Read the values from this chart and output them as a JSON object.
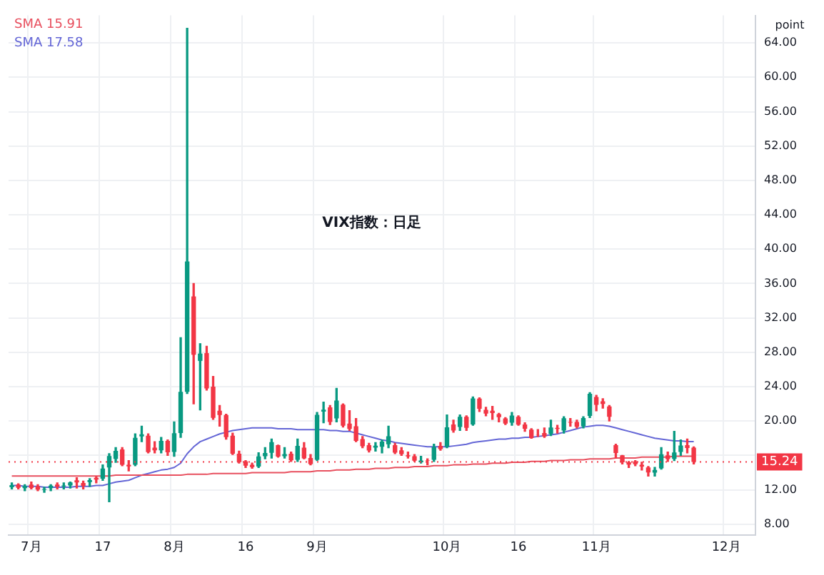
{
  "chart_data": {
    "type": "candlestick",
    "title": "VIX指数：日足",
    "ylabel": "point",
    "categories": [
      null,
      null,
      null,
      "7月",
      null,
      null,
      null,
      null,
      null,
      null,
      null,
      null,
      null,
      null,
      "17",
      null,
      null,
      null,
      null,
      null,
      null,
      null,
      null,
      null,
      null,
      "8月",
      null,
      null,
      null,
      null,
      null,
      null,
      null,
      null,
      null,
      null,
      "16",
      null,
      null,
      null,
      null,
      null,
      null,
      null,
      null,
      null,
      null,
      "9月",
      null,
      null,
      null,
      null,
      null,
      null,
      null,
      null,
      null,
      null,
      null,
      null,
      null,
      null,
      null,
      null,
      null,
      null,
      null,
      "10月",
      null,
      null,
      null,
      null,
      null,
      null,
      null,
      null,
      null,
      null,
      "16",
      null,
      null,
      null,
      null,
      null,
      null,
      null,
      null,
      null,
      null,
      null,
      "11月",
      null,
      null,
      null,
      null,
      null,
      null,
      null,
      null,
      null,
      null,
      null,
      null,
      null,
      null,
      null,
      null,
      null,
      null,
      null,
      "12月",
      null,
      null,
      null,
      null
    ],
    "ohlc": [
      [
        12.3,
        12.8,
        12.1,
        12.55
      ],
      [
        12.6,
        12.7,
        12.1,
        12.24
      ],
      [
        12.2,
        12.6,
        11.9,
        12.44
      ],
      [
        12.6,
        12.9,
        12.1,
        12.22
      ],
      [
        12.4,
        12.6,
        11.9,
        12.03
      ],
      [
        12.0,
        12.3,
        11.7,
        12.09
      ],
      [
        12.2,
        12.6,
        11.9,
        12.48
      ],
      [
        12.6,
        12.8,
        12.1,
        12.37
      ],
      [
        12.4,
        12.8,
        12.1,
        12.51
      ],
      [
        12.5,
        12.9,
        12.2,
        12.85
      ],
      [
        13.1,
        13.4,
        12.2,
        12.85
      ],
      [
        12.8,
        13.0,
        12.1,
        12.46
      ],
      [
        12.9,
        13.3,
        12.4,
        13.12
      ],
      [
        13.4,
        13.5,
        12.8,
        13.19
      ],
      [
        13.3,
        14.9,
        13.1,
        14.48
      ],
      [
        14.6,
        16.2,
        10.6,
        15.93
      ],
      [
        15.6,
        16.9,
        15.2,
        16.52
      ],
      [
        16.7,
        16.9,
        14.8,
        14.91
      ],
      [
        14.9,
        15.4,
        14.2,
        14.72
      ],
      [
        14.9,
        18.5,
        14.8,
        18.04
      ],
      [
        18.2,
        19.4,
        17.6,
        18.46
      ],
      [
        18.3,
        18.5,
        16.3,
        16.39
      ],
      [
        16.9,
        17.6,
        16.3,
        16.6
      ],
      [
        16.6,
        18.1,
        16.3,
        17.69
      ],
      [
        17.7,
        17.8,
        16.0,
        16.36
      ],
      [
        16.4,
        19.9,
        15.9,
        18.59
      ],
      [
        18.6,
        29.7,
        18.1,
        23.39
      ],
      [
        23.4,
        65.7,
        23.2,
        38.57
      ],
      [
        34.5,
        36.0,
        22.0,
        27.71
      ],
      [
        27.0,
        29.0,
        21.3,
        27.85
      ],
      [
        27.9,
        28.7,
        23.6,
        23.79
      ],
      [
        24.0,
        25.2,
        20.2,
        20.37
      ],
      [
        21.2,
        21.8,
        19.4,
        20.71
      ],
      [
        20.7,
        20.8,
        17.9,
        18.12
      ],
      [
        18.3,
        18.6,
        16.1,
        16.19
      ],
      [
        16.2,
        16.5,
        15.1,
        15.23
      ],
      [
        15.3,
        15.4,
        14.6,
        14.8
      ],
      [
        14.9,
        15.1,
        14.5,
        14.65
      ],
      [
        14.7,
        16.3,
        14.6,
        15.88
      ],
      [
        15.9,
        16.9,
        15.6,
        16.27
      ],
      [
        16.3,
        17.9,
        15.7,
        17.55
      ],
      [
        17.2,
        17.2,
        15.8,
        15.86
      ],
      [
        15.9,
        16.9,
        15.7,
        16.15
      ],
      [
        16.2,
        16.4,
        15.3,
        15.43
      ],
      [
        15.5,
        17.9,
        15.3,
        17.11
      ],
      [
        16.9,
        17.5,
        15.6,
        15.65
      ],
      [
        15.7,
        16.1,
        14.9,
        15.0
      ],
      [
        15.5,
        21.0,
        15.4,
        20.72
      ],
      [
        21.1,
        22.2,
        19.8,
        21.32
      ],
      [
        21.6,
        21.8,
        19.6,
        19.9
      ],
      [
        20.3,
        23.8,
        19.9,
        22.38
      ],
      [
        21.9,
        22.0,
        19.3,
        19.45
      ],
      [
        19.7,
        21.2,
        18.9,
        19.08
      ],
      [
        19.4,
        20.3,
        17.6,
        17.69
      ],
      [
        17.9,
        18.2,
        16.9,
        17.07
      ],
      [
        17.2,
        17.4,
        16.4,
        16.56
      ],
      [
        16.9,
        17.5,
        16.5,
        17.14
      ],
      [
        17.0,
        17.8,
        16.3,
        17.61
      ],
      [
        17.3,
        19.4,
        16.9,
        18.23
      ],
      [
        17.2,
        17.4,
        16.2,
        16.33
      ],
      [
        16.6,
        16.9,
        16.0,
        16.15
      ],
      [
        16.0,
        16.4,
        15.7,
        15.89
      ],
      [
        15.9,
        16.1,
        15.3,
        15.39
      ],
      [
        15.2,
        15.9,
        15.1,
        15.41
      ],
      [
        15.4,
        15.6,
        14.9,
        15.37
      ],
      [
        15.5,
        17.3,
        15.3,
        16.96
      ],
      [
        17.1,
        17.5,
        16.6,
        16.73
      ],
      [
        17.0,
        20.7,
        16.9,
        19.26
      ],
      [
        19.6,
        20.1,
        18.7,
        18.9
      ],
      [
        19.3,
        20.7,
        18.9,
        20.49
      ],
      [
        20.5,
        20.6,
        18.9,
        19.21
      ],
      [
        19.6,
        22.8,
        19.5,
        22.64
      ],
      [
        22.6,
        22.7,
        21.1,
        21.42
      ],
      [
        21.3,
        21.6,
        20.6,
        20.86
      ],
      [
        21.2,
        21.7,
        20.2,
        20.93
      ],
      [
        20.8,
        20.9,
        19.9,
        20.46
      ],
      [
        20.3,
        20.4,
        19.6,
        19.7
      ],
      [
        19.8,
        21.0,
        19.5,
        20.64
      ],
      [
        20.5,
        20.6,
        19.5,
        19.58
      ],
      [
        19.6,
        19.8,
        18.8,
        19.11
      ],
      [
        19.0,
        19.1,
        18.0,
        18.03
      ],
      [
        18.4,
        19.0,
        18.2,
        18.37
      ],
      [
        18.6,
        19.2,
        18.1,
        18.2
      ],
      [
        18.5,
        20.1,
        18.3,
        19.24
      ],
      [
        19.2,
        19.5,
        18.6,
        19.08
      ],
      [
        18.9,
        20.5,
        18.6,
        20.33
      ],
      [
        19.9,
        20.3,
        19.4,
        19.8
      ],
      [
        19.9,
        20.1,
        19.2,
        19.34
      ],
      [
        19.4,
        20.5,
        19.2,
        20.35
      ],
      [
        20.6,
        23.3,
        20.4,
        23.16
      ],
      [
        22.8,
        23.0,
        21.2,
        21.88
      ],
      [
        22.3,
        22.6,
        21.5,
        21.98
      ],
      [
        21.7,
        21.8,
        20.0,
        20.49
      ],
      [
        17.2,
        17.3,
        15.7,
        16.27
      ],
      [
        16.0,
        16.0,
        15.0,
        15.2
      ],
      [
        15.2,
        15.3,
        14.6,
        14.94
      ],
      [
        15.3,
        15.4,
        14.8,
        14.97
      ],
      [
        14.9,
        15.2,
        14.3,
        14.71
      ],
      [
        14.6,
        14.7,
        13.6,
        14.02
      ],
      [
        14.0,
        14.6,
        13.6,
        14.31
      ],
      [
        14.5,
        16.9,
        14.4,
        16.14
      ],
      [
        16.0,
        16.4,
        15.3,
        15.58
      ],
      [
        15.6,
        18.8,
        15.4,
        16.35
      ],
      [
        16.4,
        17.8,
        16.0,
        17.16
      ],
      [
        17.2,
        17.9,
        16.3,
        16.87
      ],
      [
        16.9,
        17.0,
        15.0,
        15.24
      ],
      null,
      null,
      null,
      null,
      null,
      null,
      null,
      null,
      null
    ],
    "colors": [
      "#089981",
      "#f23645",
      "#089981",
      "#f23645",
      "#f23645",
      "#089981",
      "#089981",
      "#f23645",
      "#089981",
      "#089981",
      "#f23645",
      "#f23645",
      "#089981",
      "#f23645",
      "#089981",
      "#089981",
      "#089981",
      "#f23645",
      "#f23645",
      "#089981",
      "#089981",
      "#f23645",
      "#f23645",
      "#089981",
      "#f23645",
      "#089981",
      "#089981",
      "#089981",
      "#f23645",
      "#089981",
      "#f23645",
      "#f23645",
      "#f23645",
      "#f23645",
      "#f23645",
      "#f23645",
      "#f23645",
      "#f23645",
      "#089981",
      "#089981",
      "#089981",
      "#f23645",
      "#089981",
      "#f23645",
      "#089981",
      "#f23645",
      "#f23645",
      "#089981",
      "#089981",
      "#f23645",
      "#089981",
      "#f23645",
      "#f23645",
      "#f23645",
      "#f23645",
      "#f23645",
      "#089981",
      "#089981",
      "#089981",
      "#f23645",
      "#f23645",
      "#f23645",
      "#f23645",
      "#089981",
      "#f23645",
      "#089981",
      "#f23645",
      "#089981",
      "#f23645",
      "#089981",
      "#f23645",
      "#089981",
      "#f23645",
      "#f23645",
      "#f23645",
      "#f23645",
      "#f23645",
      "#089981",
      "#f23645",
      "#f23645",
      "#f23645",
      "#f23645",
      "#f23645",
      "#089981",
      "#f23645",
      "#089981",
      "#f23645",
      "#f23645",
      "#089981",
      "#089981",
      "#f23645",
      "#f23645",
      "#f23645",
      "#f23645",
      "#f23645",
      "#f23645",
      "#f23645",
      "#f23645",
      "#f23645",
      "#089981",
      "#089981",
      "#f23645",
      "#089981",
      "#089981",
      "#f23645",
      "#f23645",
      null,
      null,
      null,
      null,
      null,
      null,
      null,
      null,
      null
    ],
    "series": [
      {
        "type": "line",
        "name": "SMA 15.91",
        "color": "#e8505f",
        "values": [
          13.6,
          13.6,
          13.6,
          13.6,
          13.6,
          13.6,
          13.6,
          13.6,
          13.6,
          13.6,
          13.6,
          13.6,
          13.6,
          13.6,
          13.6,
          13.6,
          13.7,
          13.7,
          13.7,
          13.7,
          13.7,
          13.7,
          13.7,
          13.7,
          13.7,
          13.7,
          13.7,
          13.8,
          13.8,
          13.8,
          13.8,
          13.9,
          13.9,
          13.9,
          13.9,
          13.9,
          13.9,
          14.0,
          14.0,
          14.0,
          14.0,
          14.0,
          14.0,
          14.1,
          14.1,
          14.1,
          14.1,
          14.2,
          14.2,
          14.2,
          14.3,
          14.3,
          14.3,
          14.4,
          14.4,
          14.4,
          14.5,
          14.5,
          14.5,
          14.6,
          14.6,
          14.6,
          14.7,
          14.7,
          14.7,
          14.8,
          14.8,
          14.8,
          14.9,
          14.9,
          14.9,
          15.0,
          15.0,
          15.0,
          15.1,
          15.1,
          15.1,
          15.2,
          15.2,
          15.2,
          15.3,
          15.3,
          15.3,
          15.4,
          15.4,
          15.4,
          15.5,
          15.5,
          15.5,
          15.6,
          15.6,
          15.6,
          15.6,
          15.7,
          15.7,
          15.7,
          15.7,
          15.8,
          15.8,
          15.8,
          15.8,
          15.8,
          15.9,
          15.9,
          15.9,
          15.9,
          null,
          null,
          null,
          null,
          null,
          null,
          null,
          null,
          null
        ]
      },
      {
        "type": "line",
        "name": "SMA 17.58",
        "color": "#6466d6",
        "values": [
          12.5,
          12.5,
          12.4,
          12.4,
          12.4,
          12.3,
          12.3,
          12.3,
          12.3,
          12.3,
          12.4,
          12.4,
          12.4,
          12.5,
          12.5,
          12.7,
          12.9,
          13.0,
          13.1,
          13.4,
          13.7,
          13.9,
          14.1,
          14.3,
          14.4,
          14.6,
          15.1,
          16.2,
          17.0,
          17.6,
          17.9,
          18.2,
          18.5,
          18.7,
          18.9,
          19.0,
          19.1,
          19.2,
          19.2,
          19.2,
          19.2,
          19.1,
          19.1,
          19.1,
          19.0,
          19.0,
          19.0,
          19.0,
          19.0,
          18.9,
          18.9,
          18.8,
          18.8,
          18.6,
          18.4,
          18.2,
          18.0,
          17.8,
          17.7,
          17.5,
          17.4,
          17.3,
          17.2,
          17.1,
          17.0,
          17.0,
          17.0,
          17.0,
          17.1,
          17.2,
          17.3,
          17.5,
          17.6,
          17.7,
          17.8,
          17.9,
          17.9,
          18.0,
          18.0,
          18.1,
          18.1,
          18.2,
          18.3,
          18.4,
          18.5,
          18.7,
          18.9,
          19.1,
          19.3,
          19.4,
          19.5,
          19.5,
          19.4,
          19.2,
          19.0,
          18.8,
          18.6,
          18.4,
          18.2,
          18.0,
          17.9,
          17.8,
          17.7,
          17.7,
          17.6,
          17.6,
          null,
          null,
          null,
          null,
          null,
          null,
          null,
          null,
          null
        ]
      }
    ],
    "ylim": [
      6.7,
      67.2
    ],
    "yticks": [
      {
        "value": 8,
        "label": "8.00"
      },
      {
        "value": 12,
        "label": "12.00"
      },
      {
        "value": 16,
        "label": null
      },
      {
        "value": 20,
        "label": "20.00"
      },
      {
        "value": 24,
        "label": "24.00"
      },
      {
        "value": 28,
        "label": "28.00"
      },
      {
        "value": 32,
        "label": "32.00"
      },
      {
        "value": 36,
        "label": "36.00"
      },
      {
        "value": 40,
        "label": "40.00"
      },
      {
        "value": 44,
        "label": "44.00"
      },
      {
        "value": 48,
        "label": "48.00"
      },
      {
        "value": 52,
        "label": "52.00"
      },
      {
        "value": 56,
        "label": "56.00"
      },
      {
        "value": 60,
        "label": "60.00"
      },
      {
        "value": 64,
        "label": "64.00"
      }
    ],
    "ref_lines": [
      {
        "axis": "y",
        "value": 15.24,
        "label": "15.24",
        "color": "#f23645",
        "line_style": "dotted"
      }
    ],
    "grid": true,
    "legend": "top left",
    "marker": "none"
  }
}
